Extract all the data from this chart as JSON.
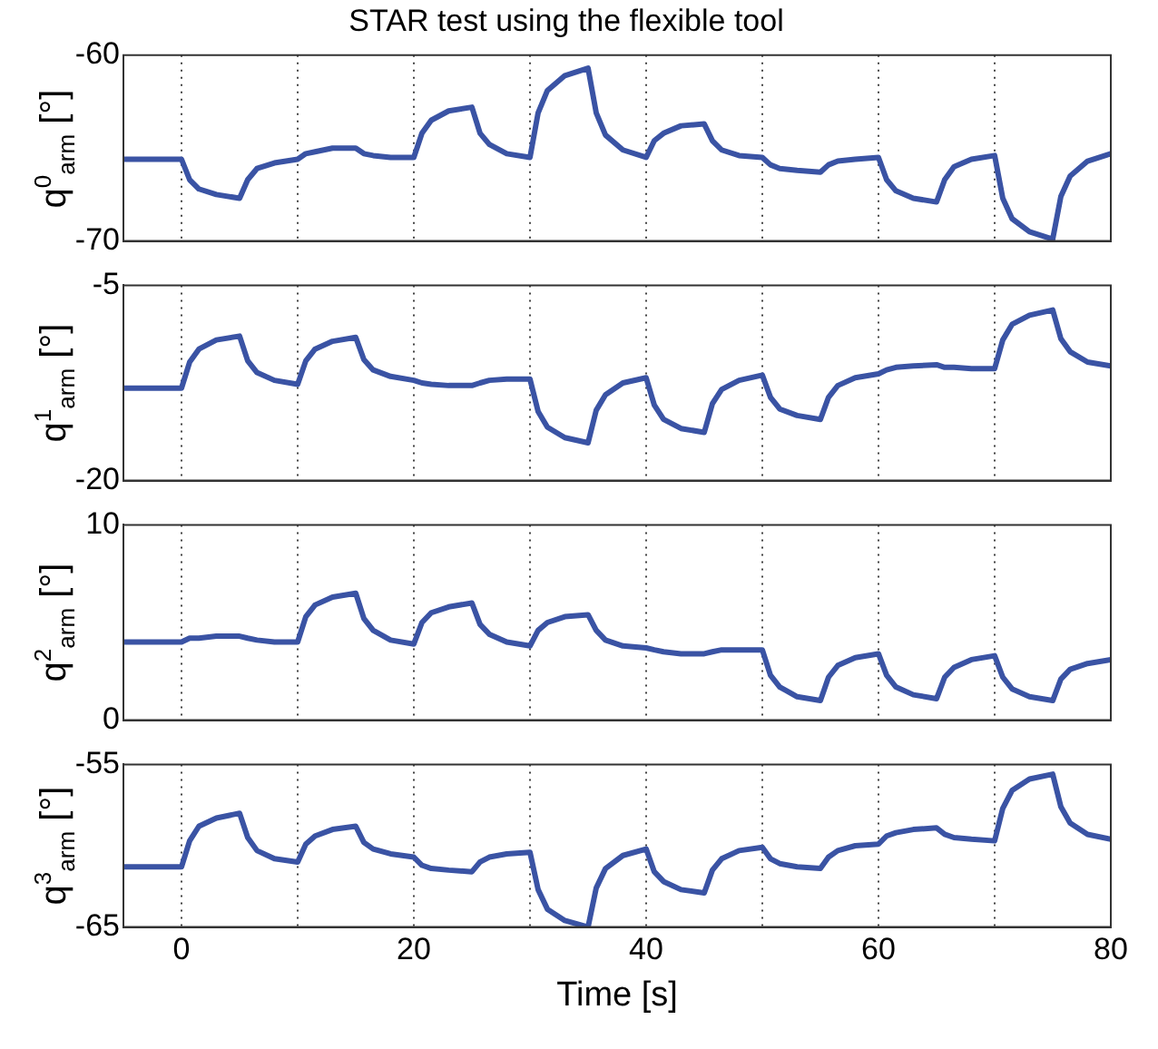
{
  "chart_data": [
    {
      "type": "line",
      "title": "STAR test using the flexible tool",
      "ylabel": "q$^{0}$$_{arm}$ [°]",
      "xlim": [
        -5,
        80
      ],
      "xticks": [
        0,
        {
          "value": 10,
          "label": null
        },
        20,
        {
          "value": 30,
          "label": null
        },
        40,
        {
          "value": 50,
          "label": null
        },
        60,
        {
          "value": 70,
          "label": null
        },
        80
      ],
      "ylim": [
        -70,
        -60
      ],
      "yticks": [
        -70,
        -60
      ],
      "grid": "x",
      "tick_labels": "y",
      "marker": "none",
      "x": [
        -5,
        0,
        0.7,
        1.5,
        3,
        5,
        5.7,
        6.5,
        8,
        10,
        10.7,
        11.5,
        13,
        15,
        15.7,
        16.5,
        18,
        20,
        20.7,
        21.5,
        23,
        25,
        25.7,
        26.5,
        28,
        30,
        30.7,
        31.5,
        33,
        35,
        35.7,
        36.5,
        38,
        40,
        40.7,
        41.5,
        43,
        45,
        45.7,
        46.5,
        48,
        50,
        50.7,
        51.5,
        53,
        55,
        55.7,
        56.5,
        58,
        60,
        60.7,
        61.5,
        63,
        65,
        65.7,
        66.5,
        68,
        70,
        70.7,
        71.5,
        73,
        75,
        75.7,
        76.5,
        78,
        80
      ],
      "series": [
        {
          "color": "#3a53a4",
          "values": [
            -65.6,
            -65.6,
            -66.7,
            -67.2,
            -67.5,
            -67.7,
            -66.7,
            -66.1,
            -65.8,
            -65.6,
            -65.3,
            -65.2,
            -65.0,
            -65.0,
            -65.3,
            -65.4,
            -65.5,
            -65.5,
            -64.2,
            -63.5,
            -63.0,
            -62.8,
            -64.2,
            -64.8,
            -65.3,
            -65.5,
            -63.1,
            -61.9,
            -61.1,
            -60.7,
            -63.1,
            -64.3,
            -65.1,
            -65.5,
            -64.6,
            -64.2,
            -63.8,
            -63.7,
            -64.6,
            -65.1,
            -65.4,
            -65.5,
            -65.9,
            -66.1,
            -66.2,
            -66.3,
            -65.9,
            -65.7,
            -65.6,
            -65.5,
            -66.7,
            -67.3,
            -67.7,
            -67.9,
            -66.7,
            -66.0,
            -65.6,
            -65.4,
            -67.7,
            -68.8,
            -69.5,
            -69.9,
            -67.6,
            -66.5,
            -65.7,
            -65.3
          ]
        }
      ]
    },
    {
      "type": "line",
      "ylabel": "q$^{1}$$_{arm}$ [°]",
      "xlim": [
        -5,
        80
      ],
      "xticks": [
        0,
        {
          "value": 10,
          "label": null
        },
        20,
        {
          "value": 30,
          "label": null
        },
        40,
        {
          "value": 50,
          "label": null
        },
        60,
        {
          "value": 70,
          "label": null
        },
        80
      ],
      "ylim": [
        -20,
        -5
      ],
      "yticks": [
        -20,
        -5
      ],
      "grid": "x",
      "tick_labels": "y",
      "marker": "none",
      "x": [
        -5,
        0,
        0.7,
        1.5,
        3,
        5,
        5.7,
        6.5,
        8,
        10,
        10.7,
        11.5,
        13,
        15,
        15.7,
        16.5,
        18,
        20,
        20.7,
        21.5,
        23,
        25,
        25.7,
        26.5,
        28,
        30,
        30.7,
        31.5,
        33,
        35,
        35.7,
        36.5,
        38,
        40,
        40.7,
        41.5,
        43,
        45,
        45.7,
        46.5,
        48,
        50,
        50.7,
        51.5,
        53,
        55,
        55.7,
        56.5,
        58,
        60,
        60.7,
        61.5,
        63,
        65,
        65.7,
        66.5,
        68,
        70,
        70.7,
        71.5,
        73,
        75,
        75.7,
        76.5,
        78,
        80
      ],
      "series": [
        {
          "color": "#3a53a4",
          "values": [
            -12.9,
            -12.9,
            -10.9,
            -9.9,
            -9.2,
            -8.9,
            -10.8,
            -11.7,
            -12.3,
            -12.6,
            -10.8,
            -9.9,
            -9.3,
            -9.0,
            -10.7,
            -11.5,
            -12.0,
            -12.3,
            -12.5,
            -12.6,
            -12.7,
            -12.7,
            -12.5,
            -12.3,
            -12.2,
            -12.2,
            -14.7,
            -15.9,
            -16.7,
            -17.1,
            -14.6,
            -13.4,
            -12.5,
            -12.1,
            -14.2,
            -15.3,
            -16.0,
            -16.3,
            -14.1,
            -13.0,
            -12.3,
            -11.9,
            -13.6,
            -14.5,
            -15.0,
            -15.3,
            -13.6,
            -12.7,
            -12.1,
            -11.8,
            -11.5,
            -11.3,
            -11.2,
            -11.1,
            -11.3,
            -11.3,
            -11.4,
            -11.4,
            -9.2,
            -8.0,
            -7.3,
            -6.9,
            -9.1,
            -10.1,
            -10.9,
            -11.2
          ]
        }
      ]
    },
    {
      "type": "line",
      "ylabel": "q$^{2}$$_{arm}$ [°]",
      "xlim": [
        -5,
        80
      ],
      "xticks": [
        0,
        {
          "value": 10,
          "label": null
        },
        20,
        {
          "value": 30,
          "label": null
        },
        40,
        {
          "value": 50,
          "label": null
        },
        60,
        {
          "value": 70,
          "label": null
        },
        80
      ],
      "ylim": [
        0,
        10
      ],
      "yticks": [
        0,
        10
      ],
      "grid": "x",
      "tick_labels": "y",
      "marker": "none",
      "x": [
        -5,
        0,
        0.7,
        1.5,
        3,
        5,
        5.7,
        6.5,
        8,
        10,
        10.7,
        11.5,
        13,
        15,
        15.7,
        16.5,
        18,
        20,
        20.7,
        21.5,
        23,
        25,
        25.7,
        26.5,
        28,
        30,
        30.7,
        31.5,
        33,
        35,
        35.7,
        36.5,
        38,
        40,
        40.7,
        41.5,
        43,
        45,
        45.7,
        46.5,
        48,
        50,
        50.7,
        51.5,
        53,
        55,
        55.7,
        56.5,
        58,
        60,
        60.7,
        61.5,
        63,
        65,
        65.7,
        66.5,
        68,
        70,
        70.7,
        71.5,
        73,
        75,
        75.7,
        76.5,
        78,
        80
      ],
      "series": [
        {
          "color": "#3a53a4",
          "values": [
            4.0,
            4.0,
            4.2,
            4.2,
            4.3,
            4.3,
            4.2,
            4.1,
            4.0,
            4.0,
            5.3,
            5.9,
            6.3,
            6.5,
            5.2,
            4.6,
            4.1,
            3.9,
            5.0,
            5.5,
            5.8,
            6.0,
            4.9,
            4.4,
            4.0,
            3.8,
            4.6,
            5.0,
            5.3,
            5.4,
            4.6,
            4.1,
            3.8,
            3.7,
            3.6,
            3.5,
            3.4,
            3.4,
            3.5,
            3.6,
            3.6,
            3.6,
            2.3,
            1.7,
            1.2,
            1.0,
            2.2,
            2.8,
            3.2,
            3.4,
            2.3,
            1.7,
            1.3,
            1.1,
            2.2,
            2.7,
            3.1,
            3.3,
            2.2,
            1.6,
            1.2,
            1.0,
            2.1,
            2.6,
            2.9,
            3.1
          ]
        }
      ]
    },
    {
      "type": "line",
      "xlabel": "Time [s]",
      "ylabel": "q$^{3}$$_{arm}$ [°]",
      "xlim": [
        -5,
        80
      ],
      "xticks": [
        0,
        {
          "value": 10,
          "label": null
        },
        20,
        {
          "value": 30,
          "label": null
        },
        40,
        {
          "value": 50,
          "label": null
        },
        60,
        {
          "value": 70,
          "label": null
        },
        80
      ],
      "ylim": [
        -65,
        -55
      ],
      "yticks": [
        -65,
        -55
      ],
      "grid": "x",
      "marker": "none",
      "x": [
        -5,
        0,
        0.7,
        1.5,
        3,
        5,
        5.7,
        6.5,
        8,
        10,
        10.7,
        11.5,
        13,
        15,
        15.7,
        16.5,
        18,
        20,
        20.7,
        21.5,
        23,
        25,
        25.7,
        26.5,
        28,
        30,
        30.7,
        31.5,
        33,
        35,
        35.7,
        36.5,
        38,
        40,
        40.7,
        41.5,
        43,
        45,
        45.7,
        46.5,
        48,
        50,
        50.7,
        51.5,
        53,
        55,
        55.7,
        56.5,
        58,
        60,
        60.7,
        61.5,
        63,
        65,
        65.7,
        66.5,
        68,
        70,
        70.7,
        71.5,
        73,
        75,
        75.7,
        76.5,
        78,
        80
      ],
      "series": [
        {
          "color": "#3a53a4",
          "values": [
            -61.3,
            -61.3,
            -59.7,
            -58.8,
            -58.3,
            -58.0,
            -59.5,
            -60.3,
            -60.8,
            -61.0,
            -59.9,
            -59.4,
            -59.0,
            -58.8,
            -59.8,
            -60.2,
            -60.5,
            -60.7,
            -61.2,
            -61.4,
            -61.5,
            -61.6,
            -61.0,
            -60.7,
            -60.5,
            -60.4,
            -62.7,
            -63.9,
            -64.6,
            -65.0,
            -62.6,
            -61.4,
            -60.6,
            -60.2,
            -61.6,
            -62.2,
            -62.7,
            -62.9,
            -61.5,
            -60.8,
            -60.3,
            -60.1,
            -60.8,
            -61.1,
            -61.3,
            -61.4,
            -60.7,
            -60.3,
            -60.0,
            -59.9,
            -59.4,
            -59.2,
            -59.0,
            -58.9,
            -59.3,
            -59.5,
            -59.6,
            -59.7,
            -57.7,
            -56.6,
            -55.9,
            -55.6,
            -57.6,
            -58.6,
            -59.3,
            -59.6
          ]
        }
      ]
    }
  ]
}
